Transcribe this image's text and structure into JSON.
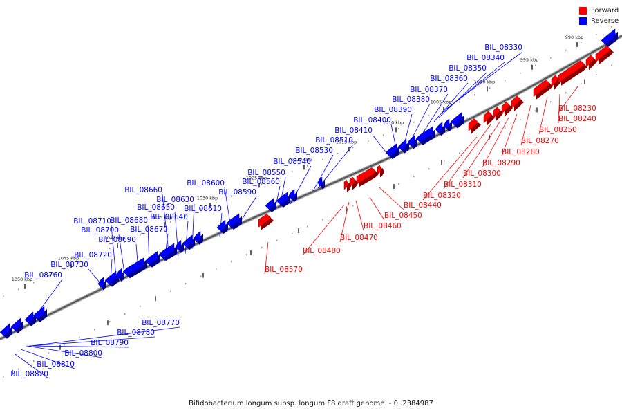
{
  "legend": {
    "forward_label": "Forward",
    "reverse_label": "Reverse",
    "forward_color": "#ff0000",
    "reverse_color": "#0000ff"
  },
  "caption": "Bifidobacterium longum subsp. longum F8 draft genome. - 0..2384987",
  "ticks": [
    "990 kbp",
    "995 kbp",
    "1000 kbp",
    "1005 kbp",
    "1010 kbp",
    "1015 kbp",
    "1020 kbp",
    "1025 kbp",
    "1030 kbp",
    "1035 kbp",
    "1040 kbp",
    "1045 kbp",
    "1050 kbp"
  ],
  "reverse_genes": [
    "BIL_08330",
    "BIL_08340",
    "BIL_08350",
    "BIL_08360",
    "BIL_08370",
    "BIL_08380",
    "BIL_08390",
    "BIL_08400",
    "BIL_08410",
    "BIL_08510",
    "BIL_08530",
    "BIL_08540",
    "BIL_08550",
    "BIL_08560",
    "BIL_08590",
    "BIL_08600",
    "BIL_08610",
    "BIL_08630",
    "BIL_08640",
    "BIL_08650",
    "BIL_08660",
    "BIL_08670",
    "BIL_08680",
    "BIL_08690",
    "BIL_08700",
    "BIL_08710",
    "BIL_08720",
    "BIL_08730",
    "BIL_08760",
    "BIL_08770",
    "BIL_08780",
    "BIL_08790",
    "BIL_08800",
    "BIL_08810",
    "BIL_08820"
  ],
  "forward_genes": [
    "BIL_08230",
    "BIL_08240",
    "BIL_08250",
    "BIL_08270",
    "BIL_08280",
    "BIL_08290",
    "BIL_08300",
    "BIL_08310",
    "BIL_08320",
    "BIL_08440",
    "BIL_08450",
    "BIL_08460",
    "BIL_08470",
    "BIL_08480",
    "BIL_08570"
  ]
}
